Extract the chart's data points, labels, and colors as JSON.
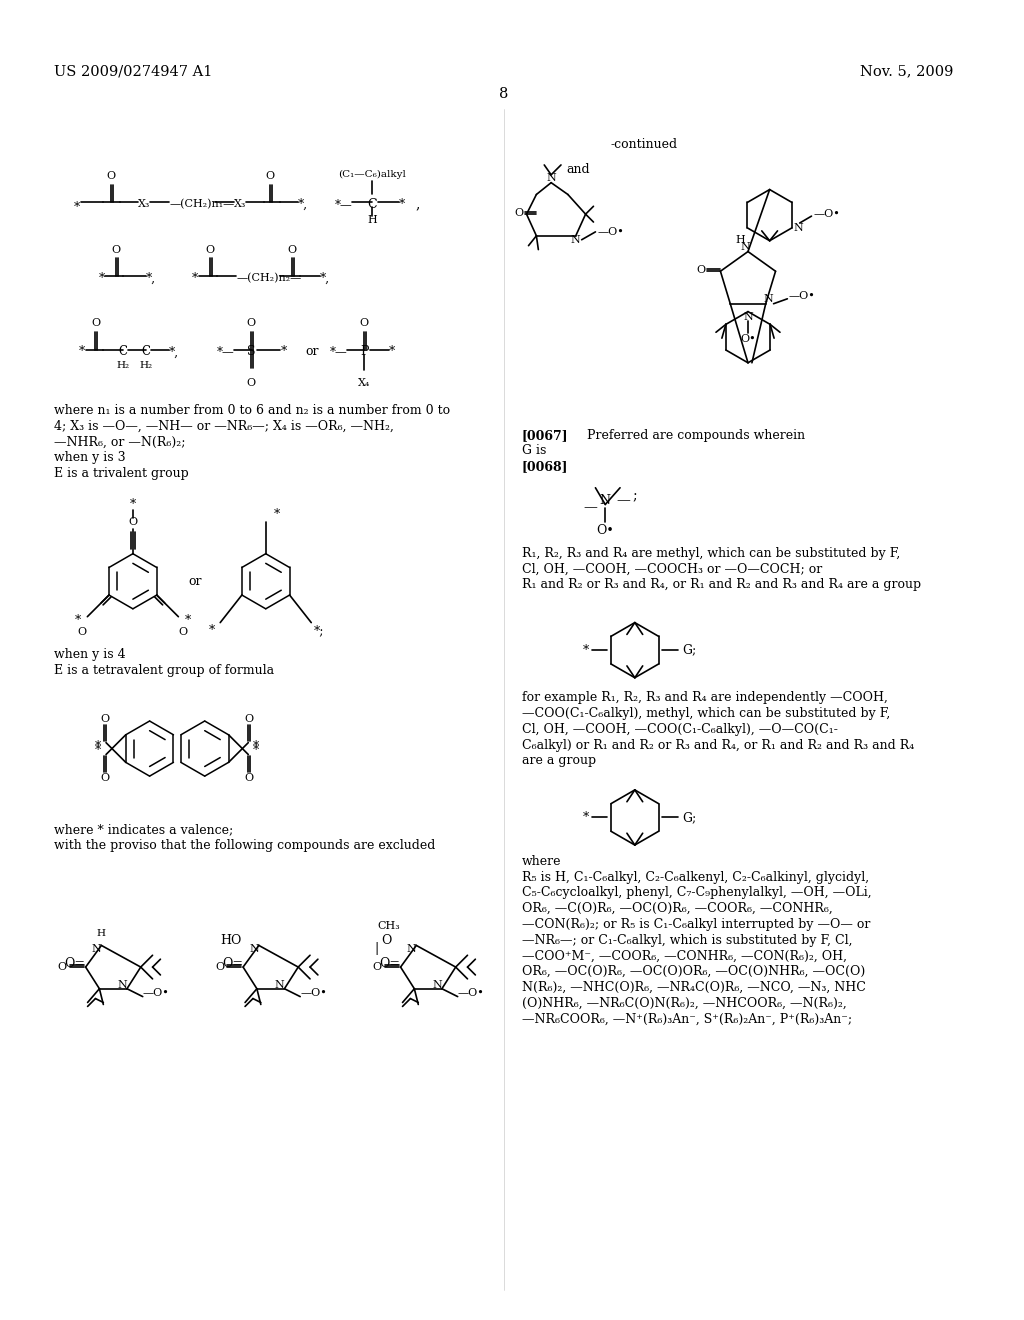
{
  "header_left": "US 2009/0274947 A1",
  "header_right": "Nov. 5, 2009",
  "page_num": "8",
  "bg": "#ffffff",
  "fc": "#000000"
}
